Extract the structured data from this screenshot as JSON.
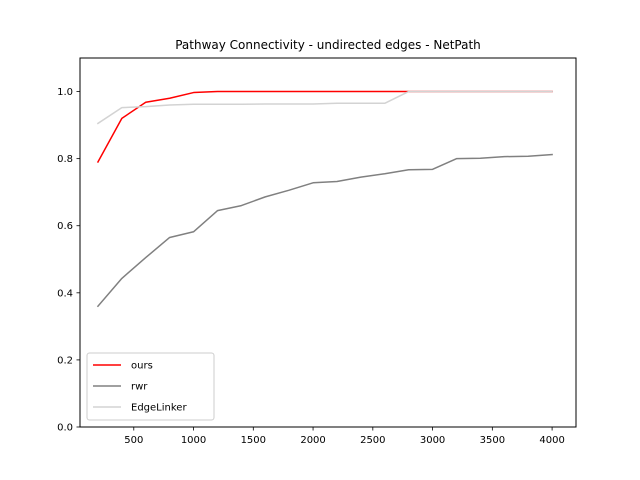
{
  "chart_data": {
    "type": "line",
    "title": "Pathway Connectivity - undirected edges - NetPath",
    "xlabel": "",
    "ylabel": "",
    "xlim": [
      50,
      4200
    ],
    "ylim": [
      0.0,
      1.1
    ],
    "x_ticks": [
      500,
      1000,
      1500,
      2000,
      2500,
      3000,
      3500,
      4000
    ],
    "y_ticks": [
      0.0,
      0.2,
      0.4,
      0.6,
      0.8,
      1.0
    ],
    "legend_position": "lower-left",
    "grid": false,
    "x": [
      200,
      400,
      600,
      800,
      1000,
      1200,
      1400,
      1600,
      1800,
      2000,
      2200,
      2400,
      2600,
      2800,
      3000,
      3200,
      3400,
      3600,
      3800,
      4000
    ],
    "series": [
      {
        "name": "ours",
        "color": "#ff0000",
        "values": [
          0.79,
          0.92,
          0.968,
          0.98,
          0.997,
          1.0,
          1.0,
          1.0,
          1.0,
          1.0,
          1.0,
          1.0,
          1.0,
          1.0,
          1.0,
          1.0,
          1.0,
          1.0,
          1.0,
          1.0
        ]
      },
      {
        "name": "rwr",
        "color": "#808080",
        "values": [
          0.36,
          0.443,
          0.505,
          0.565,
          0.582,
          0.645,
          0.66,
          0.686,
          0.706,
          0.728,
          0.732,
          0.745,
          0.755,
          0.767,
          0.768,
          0.8,
          0.801,
          0.806,
          0.807,
          0.812
        ]
      },
      {
        "name": "EdgeLinker",
        "color": "#d3d3d3",
        "values": [
          0.905,
          0.952,
          0.955,
          0.96,
          0.962,
          0.962,
          0.962,
          0.963,
          0.963,
          0.963,
          0.965,
          0.965,
          0.965,
          1.0,
          1.0,
          1.0,
          1.0,
          1.0,
          1.0,
          1.0
        ]
      }
    ]
  }
}
